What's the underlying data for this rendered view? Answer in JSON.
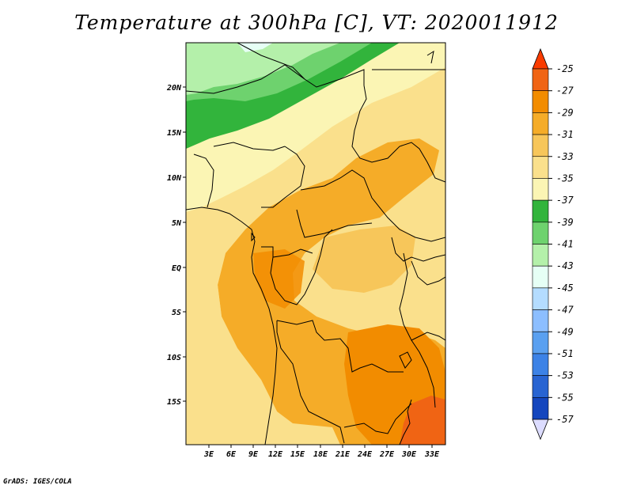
{
  "title": "Temperature at 300hPa [C], VT: 2020011912",
  "footer": "GrADS: IGES/COLA",
  "map": {
    "lat_labels": [
      "20N",
      "15N",
      "10N",
      "5N",
      "EQ",
      "5S",
      "10S",
      "15S"
    ],
    "lon_labels": [
      "3E",
      "6E",
      "9E",
      "12E",
      "15E",
      "18E",
      "21E",
      "24E",
      "27E",
      "30E",
      "33E"
    ]
  },
  "colorbar": {
    "labels": [
      "-25",
      "-27",
      "-29",
      "-31",
      "-33",
      "-35",
      "-37",
      "-39",
      "-41",
      "-43",
      "-45",
      "-47",
      "-49",
      "-51",
      "-53",
      "-55",
      "-57"
    ],
    "colors": [
      "#f06414",
      "#f28c00",
      "#f5ac28",
      "#f7c65a",
      "#fae08c",
      "#fbf5b4",
      "#32b43c",
      "#6ed26e",
      "#b4f0aa",
      "#e6fff5",
      "#b4dcff",
      "#8cbeff",
      "#5aa0f0",
      "#3c82e6",
      "#2864d2",
      "#1446be",
      "#0f1464"
    ],
    "top_cap_color": "#fa3c00",
    "bottom_cap_color": "#dcdcff"
  },
  "colors": {
    "frame": "#000000",
    "ocean": "#fae08c",
    "border": "#000000"
  }
}
